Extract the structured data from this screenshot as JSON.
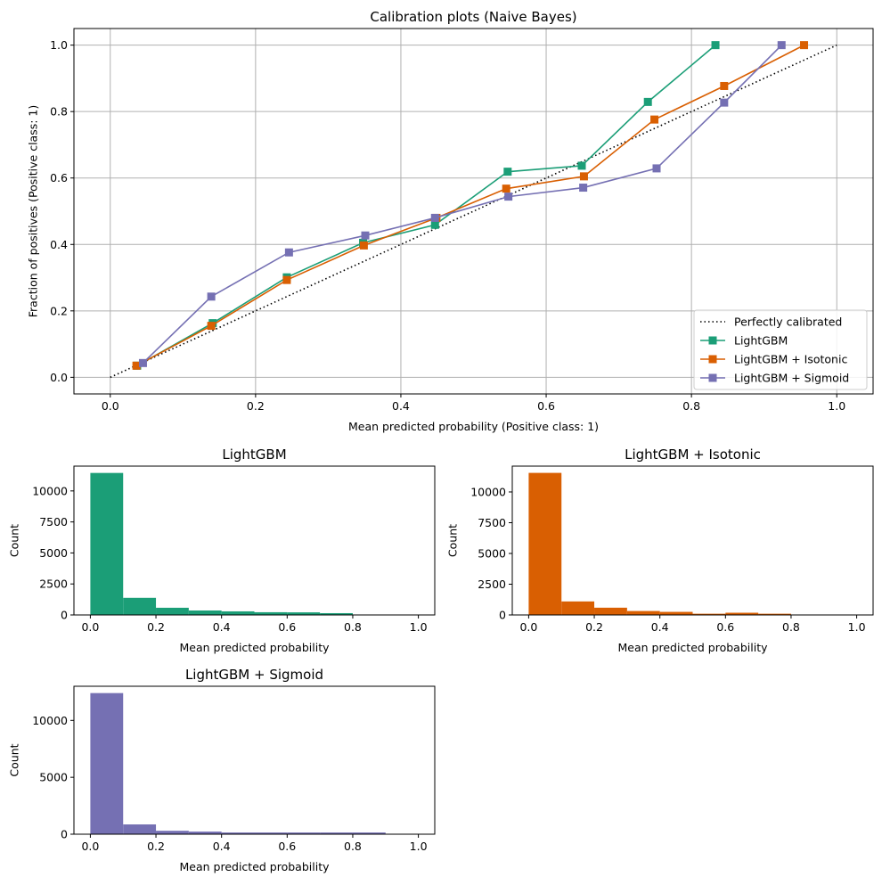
{
  "chart_data": [
    {
      "type": "line",
      "title": "Calibration plots (Naive Bayes)",
      "xlabel": "Mean predicted probability (Positive class: 1)",
      "ylabel": "Fraction of positives (Positive class: 1)",
      "xlim": [
        -0.05,
        1.05
      ],
      "ylim": [
        -0.05,
        1.05
      ],
      "xticks": [
        "0.0",
        "0.2",
        "0.4",
        "0.6",
        "0.8",
        "1.0"
      ],
      "yticks": [
        "0.0",
        "0.2",
        "0.4",
        "0.6",
        "0.8",
        "1.0"
      ],
      "grid": true,
      "legend_position": "lower-right",
      "reference": {
        "name": "Perfectly calibrated",
        "x": [
          0,
          1
        ],
        "y": [
          0,
          1
        ],
        "color": "#000000",
        "style": "dotted"
      },
      "series": [
        {
          "name": "LightGBM",
          "color": "#1b9e77",
          "marker": "square",
          "x": [
            0.037,
            0.141,
            0.243,
            0.348,
            0.447,
            0.547,
            0.649,
            0.74,
            0.833
          ],
          "y": [
            0.035,
            0.163,
            0.301,
            0.405,
            0.459,
            0.619,
            0.637,
            0.829,
            1.0
          ]
        },
        {
          "name": "LightGBM + Isotonic",
          "color": "#d95f02",
          "marker": "square",
          "x": [
            0.036,
            0.139,
            0.243,
            0.349,
            0.449,
            0.545,
            0.652,
            0.749,
            0.845,
            0.955
          ],
          "y": [
            0.035,
            0.155,
            0.293,
            0.397,
            0.48,
            0.568,
            0.605,
            0.776,
            0.877,
            1.0
          ]
        },
        {
          "name": "LightGBM + Sigmoid",
          "color": "#7570b3",
          "marker": "square",
          "x": [
            0.045,
            0.139,
            0.246,
            0.351,
            0.447,
            0.548,
            0.651,
            0.752,
            0.845,
            0.924
          ],
          "y": [
            0.043,
            0.243,
            0.376,
            0.427,
            0.48,
            0.544,
            0.571,
            0.629,
            0.827,
            1.0
          ]
        }
      ]
    },
    {
      "type": "bar",
      "title": "LightGBM",
      "xlabel": "Mean predicted probability",
      "ylabel": "Count",
      "color": "#1b9e77",
      "bin_edges": [
        0,
        0.1,
        0.2,
        0.3,
        0.4,
        0.5,
        0.6,
        0.7,
        0.8,
        0.9,
        1.0
      ],
      "values": [
        11450,
        1380,
        580,
        360,
        290,
        220,
        210,
        145,
        0,
        0
      ],
      "xlim": [
        -0.05,
        1.05
      ],
      "ylim": [
        0,
        12000
      ],
      "xticks": [
        "0.0",
        "0.2",
        "0.4",
        "0.6",
        "0.8",
        "1.0"
      ],
      "yticks": [
        "0",
        "2500",
        "5000",
        "7500",
        "10000"
      ]
    },
    {
      "type": "bar",
      "title": "LightGBM + Isotonic",
      "xlabel": "Mean predicted probability",
      "ylabel": "Count",
      "color": "#d95f02",
      "bin_edges": [
        0,
        0.1,
        0.2,
        0.3,
        0.4,
        0.5,
        0.6,
        0.7,
        0.8,
        0.9,
        1.0
      ],
      "values": [
        11550,
        1100,
        590,
        320,
        250,
        100,
        180,
        100,
        0,
        0
      ],
      "xlim": [
        -0.05,
        1.05
      ],
      "ylim": [
        0,
        12100
      ],
      "xticks": [
        "0.0",
        "0.2",
        "0.4",
        "0.6",
        "0.8",
        "1.0"
      ],
      "yticks": [
        "0",
        "2500",
        "5000",
        "7500",
        "10000"
      ]
    },
    {
      "type": "bar",
      "title": "LightGBM + Sigmoid",
      "xlabel": "Mean predicted probability",
      "ylabel": "Count",
      "color": "#7570b3",
      "bin_edges": [
        0,
        0.1,
        0.2,
        0.3,
        0.4,
        0.5,
        0.6,
        0.7,
        0.8,
        0.9,
        1.0
      ],
      "values": [
        12400,
        860,
        300,
        230,
        150,
        150,
        150,
        150,
        150,
        0
      ],
      "xlim": [
        -0.05,
        1.05
      ],
      "ylim": [
        0,
        13000
      ],
      "xticks": [
        "0.0",
        "0.2",
        "0.4",
        "0.6",
        "0.8",
        "1.0"
      ],
      "yticks": [
        "0",
        "5000",
        "10000"
      ]
    }
  ]
}
